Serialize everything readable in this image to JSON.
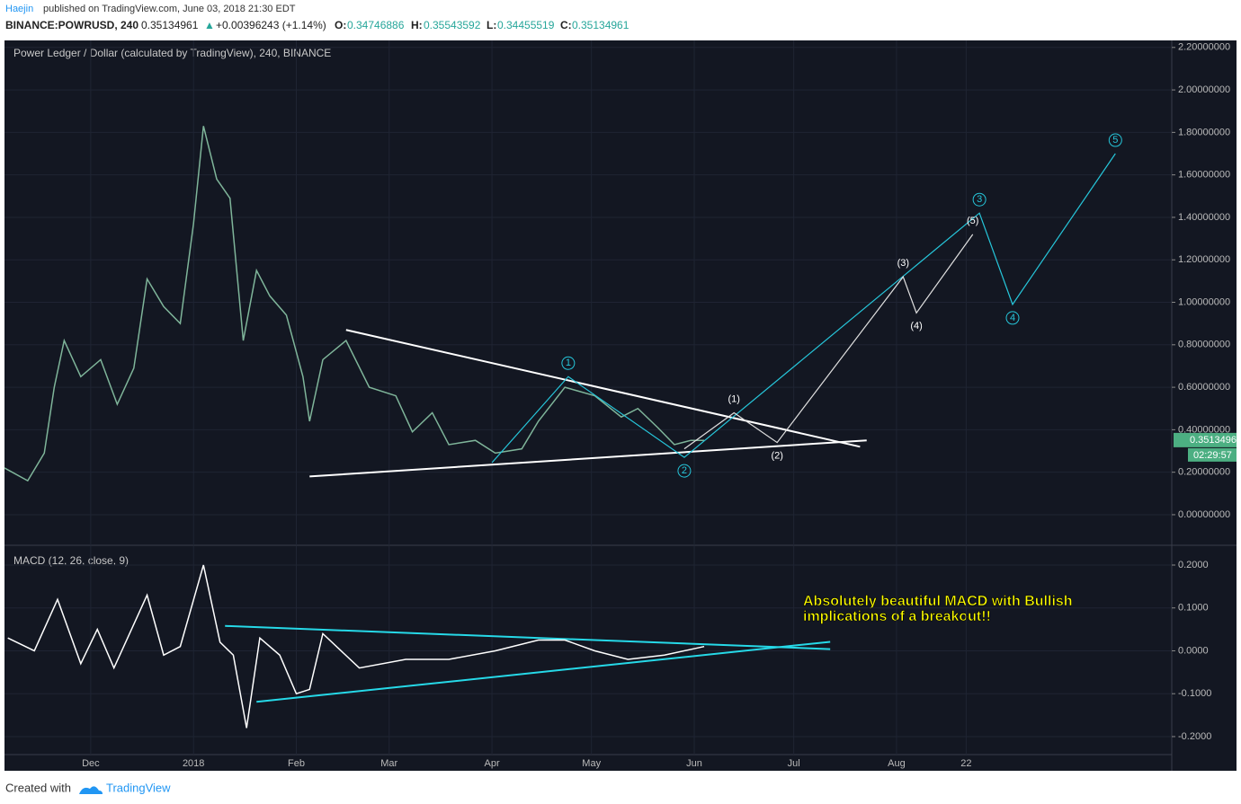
{
  "header": {
    "author": "Haejin",
    "published": "published on TradingView.com, June 03, 2018 21:30 EDT",
    "symbol": "BINANCE:POWRUSD, 240",
    "last": "0.35134961",
    "arrow": "▲",
    "change": "+0.00396243 (+1.14%)",
    "o_label": "O:",
    "o": "0.34746886",
    "h_label": "H:",
    "h": "0.35543592",
    "l_label": "L:",
    "l": "0.34455519",
    "c_label": "C:",
    "c": "0.35134961"
  },
  "chart_data": [
    {
      "type": "line",
      "title": "Power Ledger / Dollar (calculated by TradingView), 240, BINANCE",
      "xlim": [
        -57,
        295
      ],
      "xticks": [
        {
          "value": -31,
          "label": "Dec"
        },
        {
          "value": 0,
          "label": "2018"
        },
        {
          "value": 31,
          "label": "Feb"
        },
        {
          "value": 59,
          "label": "Mar"
        },
        {
          "value": 90,
          "label": "Apr"
        },
        {
          "value": 120,
          "label": "May"
        },
        {
          "value": 151,
          "label": "Jun"
        },
        {
          "value": 181,
          "label": "Jul"
        },
        {
          "value": 212,
          "label": "Aug"
        },
        {
          "value": 233,
          "label": "22"
        }
      ],
      "ylim": [
        -0.144,
        2.233
      ],
      "yticks": [
        {
          "value": 0,
          "label": "0.00000000"
        },
        {
          "value": 0.2,
          "label": "0.20000000"
        },
        {
          "value": 0.4,
          "label": "0.40000000"
        },
        {
          "value": 0.6,
          "label": "0.60000000"
        },
        {
          "value": 0.8,
          "label": "0.80000000"
        },
        {
          "value": 1.0,
          "label": "1.00000000"
        },
        {
          "value": 1.2,
          "label": "1.20000000"
        },
        {
          "value": 1.4,
          "label": "1.40000000"
        },
        {
          "value": 1.6,
          "label": "1.60000000"
        },
        {
          "value": 1.8,
          "label": "1.80000000"
        },
        {
          "value": 2.0,
          "label": "2.00000000"
        },
        {
          "value": 2.2,
          "label": "2.20000000"
        }
      ],
      "grid": true,
      "series": [
        {
          "color": "#7fb59a",
          "x": [
            -57,
            -50,
            -45,
            -42,
            -39,
            -34,
            -28,
            -23,
            -18,
            -14,
            -9,
            -4,
            0,
            3,
            7,
            11,
            15,
            19,
            23,
            28,
            33,
            35,
            39,
            46,
            53,
            61,
            66,
            72,
            77,
            85,
            91,
            99,
            104,
            112,
            121,
            129,
            134,
            140,
            145,
            150,
            154
          ],
          "values": [
            0.22,
            0.16,
            0.29,
            0.6,
            0.82,
            0.65,
            0.73,
            0.52,
            0.69,
            1.11,
            0.98,
            0.9,
            1.37,
            1.83,
            1.58,
            1.49,
            0.82,
            1.15,
            1.03,
            0.94,
            0.65,
            0.44,
            0.73,
            0.82,
            0.6,
            0.56,
            0.39,
            0.48,
            0.33,
            0.35,
            0.29,
            0.31,
            0.44,
            0.6,
            0.56,
            0.46,
            0.5,
            0.41,
            0.33,
            0.35,
            0.35
          ]
        }
      ],
      "trendlines": [
        {
          "color": "#ffffff",
          "x": [
            46,
            201
          ],
          "values": [
            0.87,
            0.32
          ]
        },
        {
          "color": "#ffffff",
          "x": [
            35,
            203
          ],
          "values": [
            0.18,
            0.35
          ]
        }
      ],
      "waves": [
        {
          "color": "#26c6da",
          "x": [
            90,
            113,
            148,
            237,
            247,
            278
          ],
          "values": [
            0.245,
            0.65,
            0.27,
            1.42,
            0.99,
            1.7
          ],
          "labels": [
            null,
            "1",
            "2",
            "3",
            "4",
            "5"
          ]
        },
        {
          "color": "#e0e0e0",
          "x": [
            148,
            163,
            176,
            214,
            218,
            235
          ],
          "values": [
            0.31,
            0.48,
            0.34,
            1.12,
            0.95,
            1.32
          ],
          "labels": [
            null,
            "(1)",
            "(2)",
            "(3)",
            "(4)",
            "(5)"
          ]
        }
      ],
      "last_price": 0.35134961,
      "countdown": "02:29:57"
    },
    {
      "type": "line",
      "title": "MACD (12, 26, close, 9)",
      "xlim": [
        -57,
        295
      ],
      "ylim": [
        -0.242,
        0.244
      ],
      "yticks": [
        {
          "value": -0.2,
          "label": "-0.2000"
        },
        {
          "value": -0.1,
          "label": "-0.1000"
        },
        {
          "value": 0,
          "label": "0.0000"
        },
        {
          "value": 0.1,
          "label": "0.1000"
        },
        {
          "value": 0.2,
          "label": "0.2000"
        }
      ],
      "grid": true,
      "series": [
        {
          "color": "#ffffff",
          "x": [
            -56,
            -48,
            -41,
            -34,
            -29,
            -24,
            -14,
            -9,
            -4,
            3,
            8,
            12,
            16,
            20,
            26,
            31,
            35,
            39,
            50,
            64,
            77,
            91,
            104,
            112,
            121,
            131,
            142,
            154
          ],
          "values": [
            0.03,
            0,
            0.12,
            -0.03,
            0.05,
            -0.04,
            0.13,
            -0.01,
            0.01,
            0.2,
            0.02,
            -0.01,
            -0.18,
            0.03,
            -0.01,
            -0.1,
            -0.09,
            0.04,
            -0.04,
            -0.02,
            -0.02,
            0,
            0.025,
            0.025,
            0,
            -0.02,
            -0.01,
            0.01
          ]
        }
      ],
      "trendlines": [
        {
          "color": "#26d9e8",
          "x": [
            9.5,
            192
          ],
          "values": [
            0.058,
            0.004
          ]
        },
        {
          "color": "#26d9e8",
          "x": [
            19,
            192
          ],
          "values": [
            -0.119,
            0.021
          ]
        }
      ],
      "annotation": [
        "Absolutely beautiful MACD with Bullish",
        "implications of a breakout!!"
      ]
    }
  ],
  "footer": {
    "created": "Created with",
    "brand": "TradingView"
  }
}
